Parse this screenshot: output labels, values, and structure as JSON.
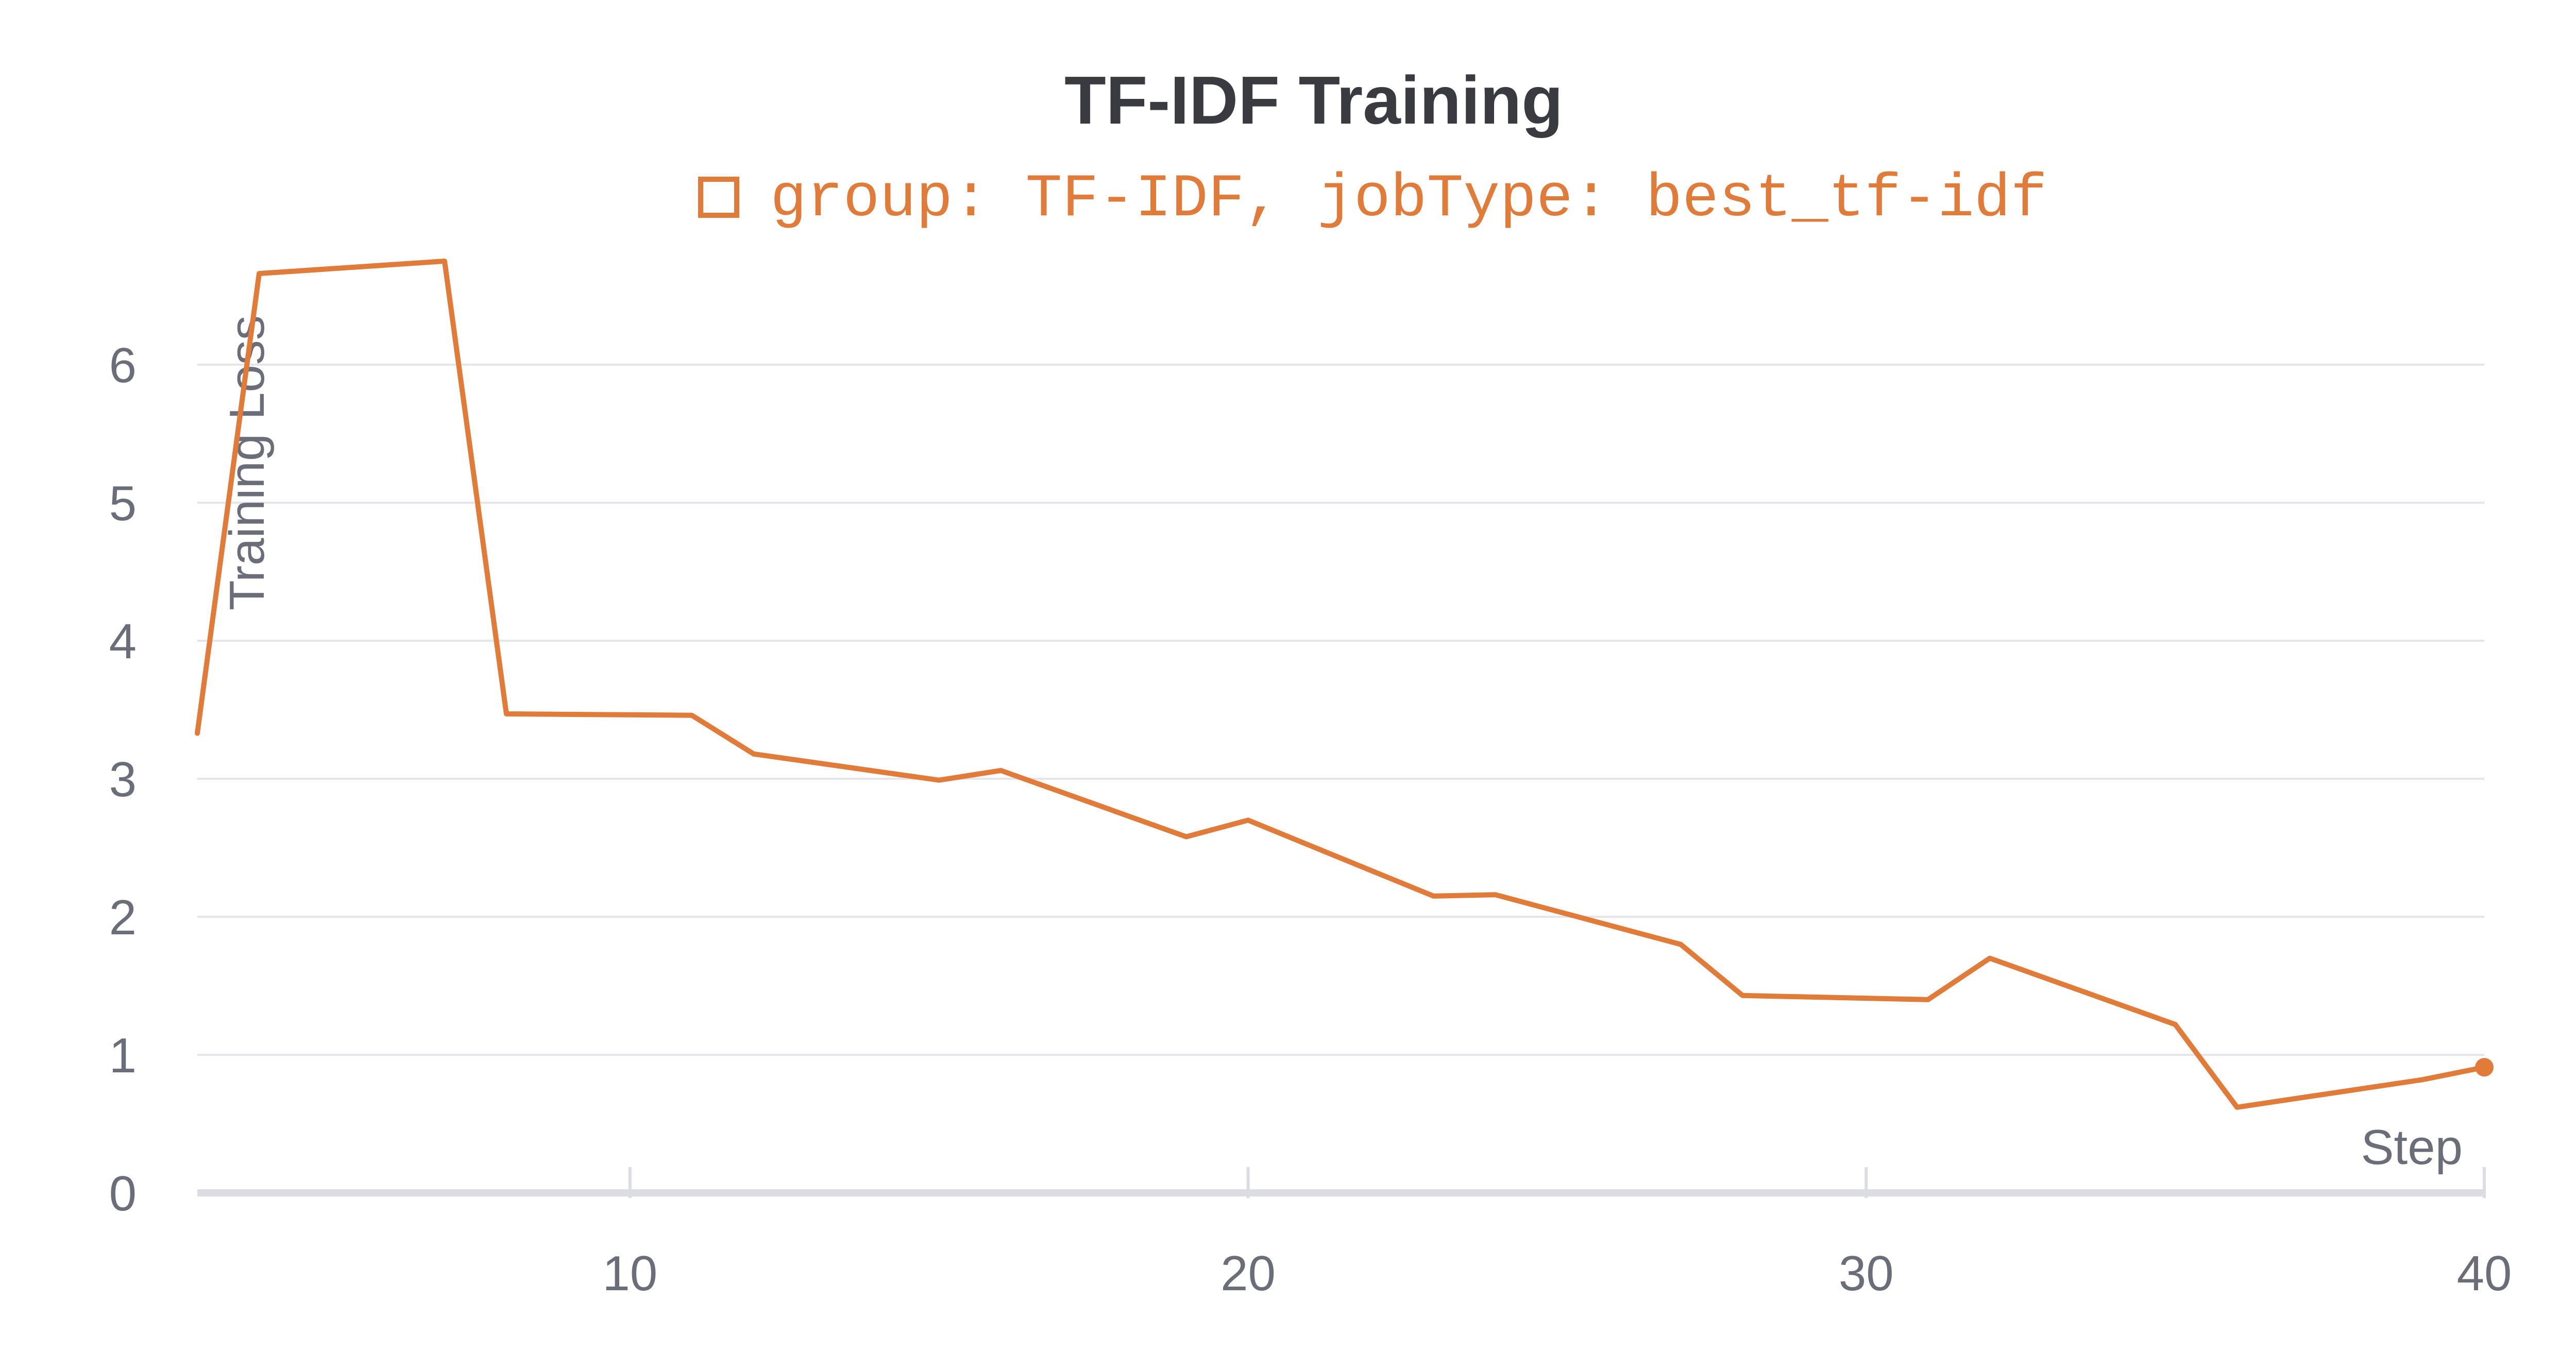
{
  "chart_data": {
    "type": "line",
    "title": "TF-IDF Training",
    "xlabel": "Step",
    "ylabel": "Training Loss",
    "xlim": [
      3,
      40
    ],
    "ylim": [
      0,
      7
    ],
    "xticks": [
      10,
      20,
      30,
      40
    ],
    "yticks": [
      0,
      1,
      2,
      3,
      4,
      5,
      6
    ],
    "grid": "horizontal",
    "legend_placement": "top-center",
    "series": [
      {
        "name": "group: TF-IDF, jobType: best_tf-idf",
        "color": "#e07b39",
        "x": [
          3,
          4,
          7,
          8,
          11,
          12,
          15,
          16,
          19,
          20,
          23,
          24,
          27,
          28,
          31,
          32,
          35,
          36,
          39,
          40
        ],
        "y": [
          3.33,
          6.66,
          6.75,
          3.47,
          3.46,
          3.18,
          2.99,
          3.06,
          2.58,
          2.7,
          2.15,
          2.16,
          1.8,
          1.43,
          1.4,
          1.7,
          1.22,
          0.62,
          0.82,
          0.91
        ]
      }
    ]
  }
}
